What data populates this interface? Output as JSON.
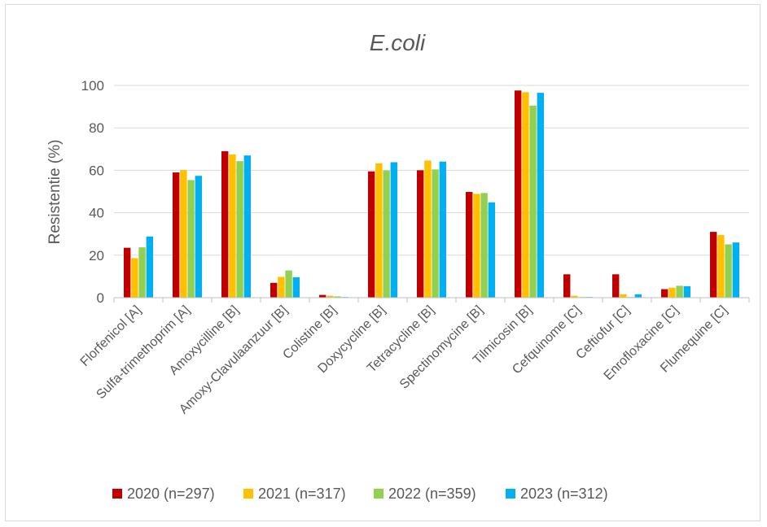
{
  "chart_data": {
    "type": "bar",
    "title": "E.coli",
    "xlabel": "",
    "ylabel": "Resistentie (%)",
    "ylim": [
      0,
      100
    ],
    "yticks": [
      0,
      20,
      40,
      60,
      80,
      100
    ],
    "grid": true,
    "legend_position": "bottom",
    "categories": [
      "Florfenicol [A]",
      "Sulfa-trimethoprim [A]",
      "Amoxycilline  [B]",
      "Amoxy-Clavulaanzuur [B]",
      "Colistine [B]",
      "Doxycycline [B]",
      "Tetracycline [B]",
      "Spectinomycine [B]",
      "Tilmicosin [B]",
      "Cefquinome [C]",
      "Ceftiofur [C]",
      "Enrofloxacine [C]",
      "Flumequine [C]"
    ],
    "series": [
      {
        "name": "2020 (n=297)",
        "color": "#c00000",
        "values": [
          23.5,
          59,
          69,
          7,
          1.3,
          59.5,
          60,
          49.8,
          97.6,
          11,
          11,
          4,
          31
        ]
      },
      {
        "name": "2021 (n=317)",
        "color": "#ffc000",
        "values": [
          18.6,
          60.1,
          67.5,
          9.8,
          0.9,
          63.3,
          64.6,
          48.9,
          96.8,
          0.9,
          1.6,
          4.7,
          29.5
        ]
      },
      {
        "name": "2022 (n=359)",
        "color": "#92d050",
        "values": [
          23.7,
          55.4,
          64.3,
          12.8,
          0.6,
          59.9,
          60.4,
          49.3,
          90.5,
          0.3,
          0.3,
          5.6,
          25.1
        ]
      },
      {
        "name": "2023 (n=312)",
        "color": "#00b0f0",
        "values": [
          28.8,
          57.4,
          67,
          9.6,
          0.3,
          63.8,
          64.1,
          44.9,
          96.5,
          0.3,
          1.6,
          5.4,
          26
        ]
      }
    ]
  },
  "colors": {
    "grid": "#d9d9d9",
    "axis": "#bfbfbf",
    "text": "#595959"
  }
}
